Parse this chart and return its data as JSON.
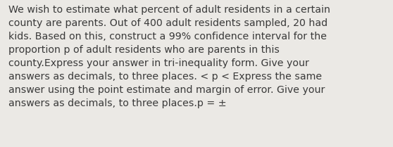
{
  "background_color": "#ebe9e5",
  "text_color": "#3a3a3a",
  "font_size": 10.2,
  "text": "We wish to estimate what percent of adult residents in a certain\ncounty are parents. Out of 400 adult residents sampled, 20 had\nkids. Based on this, construct a 99% confidence interval for the\nproportion p of adult residents who are parents in this\ncounty.Express your answer in tri-inequality form. Give your\nanswers as decimals, to three places. < p < Express the same\nanswer using the point estimate and margin of error. Give your\nanswers as decimals, to three places.p = ±",
  "figwidth": 5.58,
  "figheight": 2.09,
  "dpi": 100,
  "linespacing": 1.45
}
